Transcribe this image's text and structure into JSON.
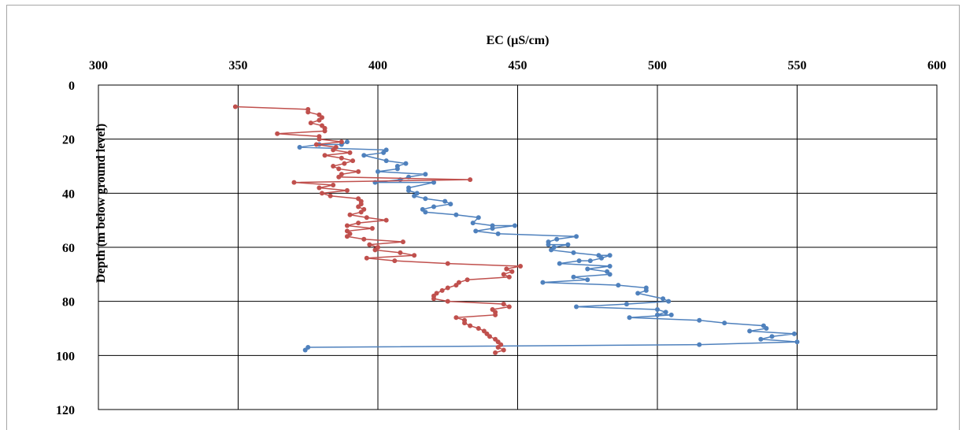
{
  "chart_data": {
    "type": "line",
    "xlabel": "EC (µS/cm)",
    "ylabel": "Depth (m below ground level)",
    "x_axis_position": "top",
    "y_axis_inverted": true,
    "xlim": [
      300,
      600
    ],
    "ylim": [
      0,
      120
    ],
    "x_ticks": [
      "300",
      "350",
      "400",
      "450",
      "500",
      "550",
      "600"
    ],
    "y_ticks": [
      "0",
      "20",
      "40",
      "60",
      "80",
      "100",
      "120"
    ],
    "grid": true,
    "legend": "none",
    "series": [
      {
        "color": "#4f81bd",
        "points": [
          [
            389,
            21
          ],
          [
            387,
            22
          ],
          [
            379,
            22
          ],
          [
            372,
            23
          ],
          [
            403,
            24
          ],
          [
            402,
            25
          ],
          [
            395,
            26
          ],
          [
            403,
            28
          ],
          [
            410,
            29
          ],
          [
            407,
            30
          ],
          [
            407,
            31
          ],
          [
            400,
            32
          ],
          [
            417,
            33
          ],
          [
            411,
            34
          ],
          [
            408,
            35
          ],
          [
            399,
            36
          ],
          [
            420,
            36
          ],
          [
            411,
            38
          ],
          [
            411,
            39
          ],
          [
            414,
            40
          ],
          [
            413,
            41
          ],
          [
            417,
            42
          ],
          [
            424,
            43
          ],
          [
            426,
            44
          ],
          [
            420,
            45
          ],
          [
            416,
            46
          ],
          [
            417,
            47
          ],
          [
            428,
            48
          ],
          [
            436,
            49
          ],
          [
            434,
            51
          ],
          [
            441,
            52
          ],
          [
            449,
            52
          ],
          [
            441,
            53
          ],
          [
            435,
            54
          ],
          [
            443,
            55
          ],
          [
            471,
            56
          ],
          [
            464,
            57
          ],
          [
            461,
            58
          ],
          [
            461,
            59
          ],
          [
            468,
            59
          ],
          [
            463,
            60
          ],
          [
            462,
            61
          ],
          [
            470,
            62
          ],
          [
            479,
            63
          ],
          [
            483,
            63
          ],
          [
            480,
            64
          ],
          [
            476,
            65
          ],
          [
            472,
            65
          ],
          [
            465,
            66
          ],
          [
            483,
            67
          ],
          [
            475,
            68
          ],
          [
            482,
            69
          ],
          [
            483,
            70
          ],
          [
            470,
            71
          ],
          [
            475,
            72
          ],
          [
            459,
            73
          ],
          [
            486,
            74
          ],
          [
            496,
            75
          ],
          [
            496,
            76
          ],
          [
            493,
            77
          ],
          [
            502,
            79
          ],
          [
            504,
            80
          ],
          [
            489,
            81
          ],
          [
            471,
            82
          ],
          [
            500,
            83
          ],
          [
            503,
            84
          ],
          [
            500,
            85
          ],
          [
            505,
            85
          ],
          [
            490,
            86
          ],
          [
            515,
            87
          ],
          [
            524,
            88
          ],
          [
            538,
            89
          ],
          [
            539,
            90
          ],
          [
            533,
            91
          ],
          [
            549,
            92
          ],
          [
            541,
            93
          ],
          [
            537,
            94
          ],
          [
            550,
            95
          ],
          [
            515,
            96
          ],
          [
            375,
            97
          ],
          [
            374,
            98
          ]
        ]
      },
      {
        "color": "#c0504d",
        "points": [
          [
            349,
            8
          ],
          [
            375,
            9
          ],
          [
            375,
            10
          ],
          [
            379,
            11
          ],
          [
            380,
            12
          ],
          [
            379,
            13
          ],
          [
            376,
            14
          ],
          [
            380,
            15
          ],
          [
            381,
            16
          ],
          [
            381,
            17
          ],
          [
            364,
            18
          ],
          [
            379,
            19
          ],
          [
            379,
            20
          ],
          [
            387,
            21
          ],
          [
            378,
            22
          ],
          [
            385,
            23
          ],
          [
            384,
            24
          ],
          [
            390,
            25
          ],
          [
            381,
            26
          ],
          [
            387,
            27
          ],
          [
            391,
            28
          ],
          [
            388,
            29
          ],
          [
            384,
            30
          ],
          [
            386,
            31
          ],
          [
            393,
            32
          ],
          [
            387,
            33
          ],
          [
            386,
            34
          ],
          [
            433,
            35
          ],
          [
            370,
            36
          ],
          [
            384,
            37
          ],
          [
            379,
            38
          ],
          [
            389,
            39
          ],
          [
            380,
            40
          ],
          [
            383,
            41
          ],
          [
            393,
            42
          ],
          [
            394,
            43
          ],
          [
            394,
            44
          ],
          [
            393,
            45
          ],
          [
            395,
            46
          ],
          [
            394,
            47
          ],
          [
            390,
            48
          ],
          [
            396,
            49
          ],
          [
            403,
            50
          ],
          [
            393,
            51
          ],
          [
            389,
            52
          ],
          [
            398,
            53
          ],
          [
            389,
            54
          ],
          [
            390,
            55
          ],
          [
            389,
            56
          ],
          [
            395,
            57
          ],
          [
            409,
            58
          ],
          [
            397,
            59
          ],
          [
            400,
            60
          ],
          [
            399,
            61
          ],
          [
            408,
            62
          ],
          [
            413,
            63
          ],
          [
            396,
            64
          ],
          [
            406,
            65
          ],
          [
            425,
            66
          ],
          [
            451,
            67
          ],
          [
            446,
            68
          ],
          [
            448,
            69
          ],
          [
            445,
            70
          ],
          [
            447,
            71
          ],
          [
            432,
            72
          ],
          [
            429,
            73
          ],
          [
            428,
            74
          ],
          [
            425,
            75
          ],
          [
            423,
            76
          ],
          [
            421,
            77
          ],
          [
            420,
            78
          ],
          [
            420,
            79
          ],
          [
            425,
            80
          ],
          [
            445,
            81
          ],
          [
            447,
            82
          ],
          [
            441,
            83
          ],
          [
            442,
            84
          ],
          [
            442,
            85
          ],
          [
            428,
            86
          ],
          [
            431,
            87
          ],
          [
            431,
            88
          ],
          [
            433,
            89
          ],
          [
            436,
            90
          ],
          [
            438,
            91
          ],
          [
            439,
            92
          ],
          [
            440,
            93
          ],
          [
            442,
            94
          ],
          [
            443,
            95
          ],
          [
            444,
            96
          ],
          [
            443,
            97
          ],
          [
            445,
            98
          ],
          [
            442,
            99
          ]
        ]
      }
    ]
  }
}
